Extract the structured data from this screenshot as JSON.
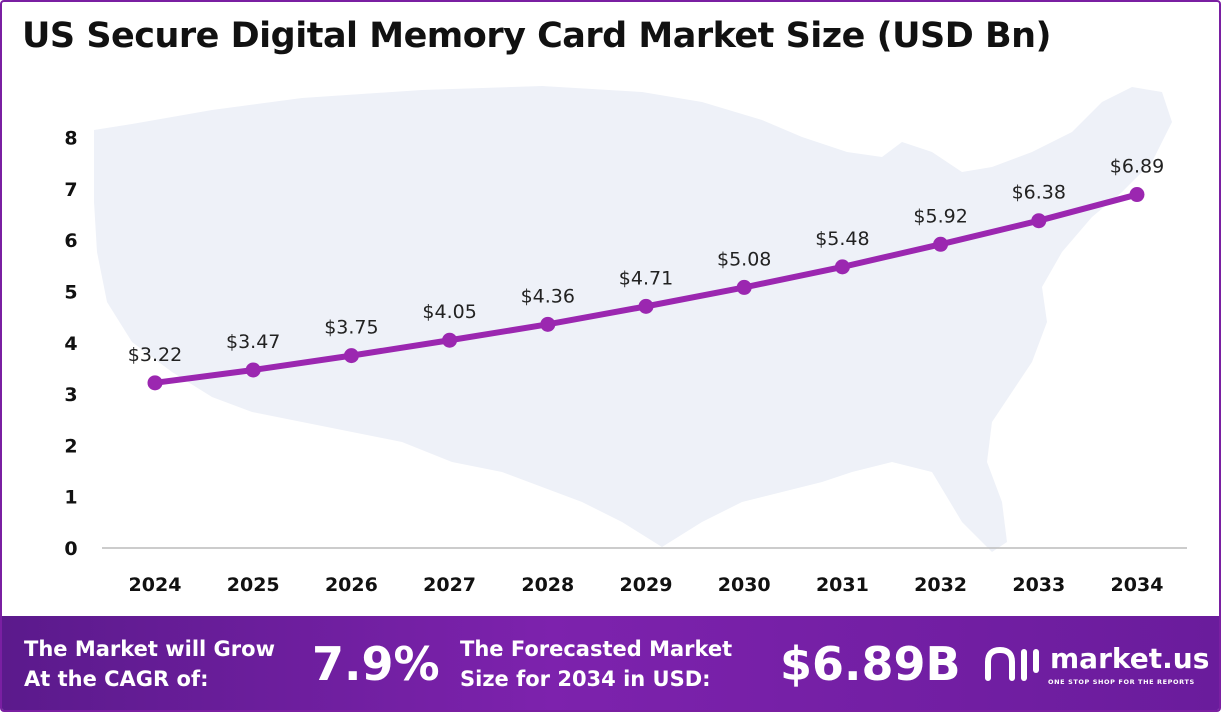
{
  "title": "US Secure Digital Memory Card Market Size (USD Bn)",
  "chart_data": {
    "type": "line",
    "title": "US Secure Digital Memory Card Market Size (USD Bn)",
    "categories": [
      "2024",
      "2025",
      "2026",
      "2027",
      "2028",
      "2029",
      "2030",
      "2031",
      "2032",
      "2033",
      "2034"
    ],
    "series": [
      {
        "name": "Market Size (USD Bn)",
        "values": [
          3.22,
          3.47,
          3.75,
          4.05,
          4.36,
          4.71,
          5.08,
          5.48,
          5.92,
          6.38,
          6.89
        ],
        "labels": [
          "$3.22",
          "$3.47",
          "$3.75",
          "$4.05",
          "$4.36",
          "$4.71",
          "$5.08",
          "$5.48",
          "$5.92",
          "$6.38",
          "$6.89"
        ],
        "color": "#9b27b0"
      }
    ],
    "yticks": [
      "0",
      "1",
      "2",
      "3",
      "4",
      "5",
      "6",
      "7",
      "8"
    ],
    "ylim": [
      0,
      8
    ],
    "xlabel": "",
    "ylabel": "",
    "grid": false,
    "legend": "none"
  },
  "footer": {
    "cagr_label": "The Market will Grow At the CAGR of:",
    "cagr_value": "7.9%",
    "forecast_label": "The Forecasted Market Size for 2034 in USD:",
    "forecast_value": "$6.89B",
    "brand_name": "market.us",
    "brand_tagline": "ONE STOP SHOP FOR THE REPORTS"
  },
  "colors": {
    "line": "#9b27b0",
    "footer_start": "#5b1a8c",
    "footer_end": "#7d22ad",
    "map": "#eef1f8"
  }
}
